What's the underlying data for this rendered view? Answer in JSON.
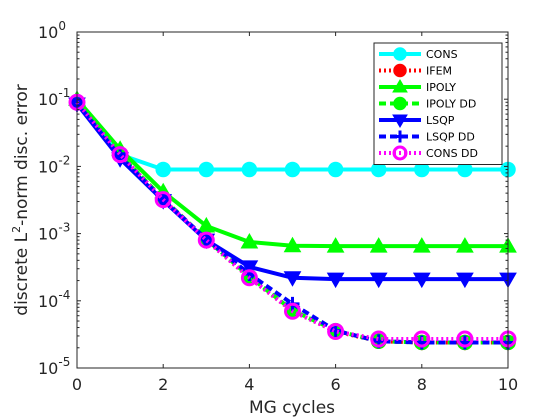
{
  "chart_data": {
    "type": "line",
    "xlabel": "MG cycles",
    "ylabel": "discrete L²-norm disc. error",
    "yscale": "log",
    "xlim": [
      0,
      10
    ],
    "ylim": [
      1e-05,
      1
    ],
    "x_ticks": [
      0,
      2,
      4,
      6,
      8,
      10
    ],
    "y_ticks": [
      {
        "value": 1,
        "base": "10",
        "exp": "0"
      },
      {
        "value": 0.1,
        "base": "10",
        "exp": "-1"
      },
      {
        "value": 0.01,
        "base": "10",
        "exp": "-2"
      },
      {
        "value": 0.001,
        "base": "10",
        "exp": "-3"
      },
      {
        "value": 0.0001,
        "base": "10",
        "exp": "-4"
      },
      {
        "value": 1e-05,
        "base": "10",
        "exp": "-5"
      }
    ],
    "legend_position": "top-right",
    "grid": false,
    "x": [
      0,
      1,
      2,
      3,
      4,
      5,
      6,
      7,
      8,
      9,
      10
    ],
    "series": [
      {
        "name": "CONS",
        "color": "#00ffff",
        "marker": "circle",
        "dash": "solid",
        "values": [
          0.09,
          0.015,
          0.009,
          0.009,
          0.009,
          0.009,
          0.009,
          0.009,
          0.009,
          0.009,
          0.009
        ]
      },
      {
        "name": "IFEM",
        "color": "#ff0000",
        "marker": "circle",
        "dash": "dotted",
        "values": [
          0.09,
          0.015,
          0.0032,
          0.0008,
          0.00022,
          7e-05,
          3.5e-05,
          2.5e-05,
          2.4e-05,
          2.4e-05,
          2.4e-05
        ]
      },
      {
        "name": "IPOLY",
        "color": "#00ff00",
        "marker": "triangle-up",
        "dash": "solid",
        "values": [
          0.1,
          0.018,
          0.0042,
          0.0013,
          0.00075,
          0.00066,
          0.00065,
          0.00065,
          0.00065,
          0.00065,
          0.00065
        ]
      },
      {
        "name": "IPOLY DD",
        "color": "#00ff00",
        "marker": "circle",
        "dash": "dashed",
        "values": [
          0.092,
          0.015,
          0.0033,
          0.00082,
          0.00023,
          7.2e-05,
          3.6e-05,
          2.5e-05,
          2.4e-05,
          2.4e-05,
          2.4e-05
        ]
      },
      {
        "name": "LSQP",
        "color": "#0000ff",
        "marker": "triangle-down",
        "dash": "solid",
        "values": [
          0.085,
          0.013,
          0.0031,
          0.0008,
          0.00032,
          0.00022,
          0.00021,
          0.00021,
          0.00021,
          0.00021,
          0.00021
        ]
      },
      {
        "name": "LSQP DD",
        "color": "#0000ff",
        "marker": "plus",
        "dash": "dashed",
        "values": [
          0.088,
          0.014,
          0.0032,
          0.00083,
          0.00025,
          9e-05,
          3.6e-05,
          2.5e-05,
          2.4e-05,
          2.4e-05,
          2.4e-05
        ]
      },
      {
        "name": "CONS DD",
        "color": "#ff00ff",
        "marker": "circle-open",
        "dash": "dotted",
        "values": [
          0.09,
          0.015,
          0.0032,
          0.0008,
          0.00022,
          7e-05,
          3.5e-05,
          2.7e-05,
          2.7e-05,
          2.7e-05,
          2.7e-05
        ]
      }
    ]
  }
}
